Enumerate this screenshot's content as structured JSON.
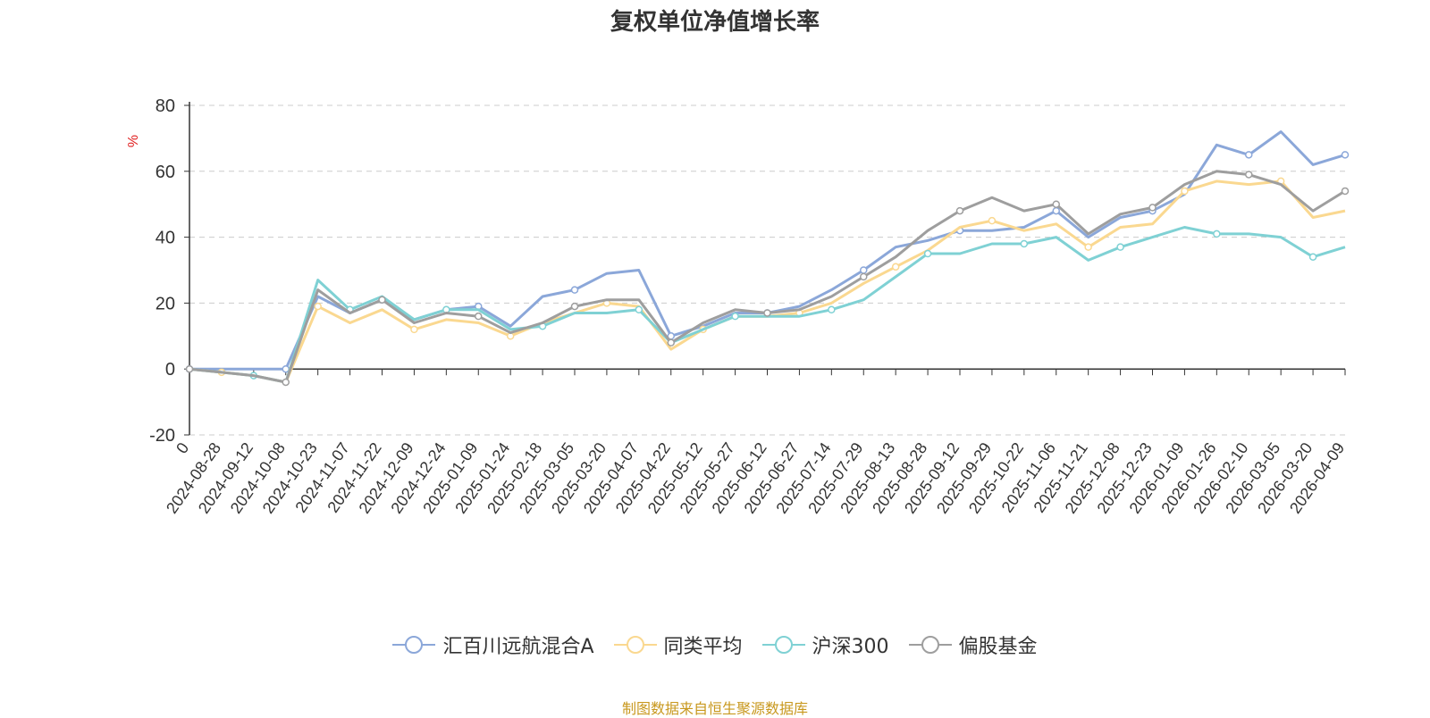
{
  "chart_data": {
    "type": "line",
    "title": "复权单位净值增长率",
    "ylabel": "%",
    "ylim": [
      -20,
      80
    ],
    "yticks": [
      -20,
      0,
      20,
      40,
      60,
      80
    ],
    "grid": true,
    "legend_position": "bottom",
    "x_tick_labels": [
      "0",
      "2024-08-28",
      "2024-09-12",
      "2024-10-08",
      "2024-10-23",
      "2024-11-07",
      "2024-11-22",
      "2024-12-09",
      "2024-12-24",
      "2025-01-09",
      "2025-01-24",
      "2025-02-18",
      "2025-03-05",
      "2025-03-20",
      "2025-04-07",
      "2025-04-22",
      "2025-05-12",
      "2025-05-27",
      "2025-06-12",
      "2025-06-27",
      "2025-07-14",
      "2025-07-29",
      "2025-08-13",
      "2025-08-28",
      "2025-09-12",
      "2025-09-29",
      "2025-10-22",
      "2025-11-06",
      "2025-11-21",
      "2025-12-08",
      "2025-12-23",
      "2026-01-09",
      "2026-01-26",
      "2026-02-10",
      "2026-03-05",
      "2026-03-20",
      "2026-04-09"
    ],
    "series": [
      {
        "name": "汇百川远航混合A",
        "color": "#8ba7d9",
        "values": [
          0,
          0,
          0,
          0,
          22,
          17,
          21,
          15,
          18,
          19,
          13,
          22,
          24,
          29,
          30,
          10,
          13,
          17,
          17,
          19,
          24,
          30,
          37,
          39,
          42,
          42,
          43,
          48,
          40,
          46,
          48,
          53,
          68,
          65,
          72,
          62,
          65
        ]
      },
      {
        "name": "同类平均",
        "color": "#fad890",
        "values": [
          0,
          -1,
          -2,
          -4,
          19,
          14,
          18,
          12,
          15,
          14,
          10,
          14,
          17,
          20,
          19,
          6,
          12,
          16,
          16,
          17,
          20,
          26,
          31,
          36,
          43,
          45,
          42,
          44,
          37,
          43,
          44,
          54,
          57,
          56,
          57,
          46,
          48
        ]
      },
      {
        "name": "沪深300",
        "color": "#7fd1d4",
        "values": [
          0,
          -1,
          -2,
          -4,
          27,
          18,
          22,
          15,
          18,
          18,
          12,
          13,
          17,
          17,
          18,
          8,
          12,
          16,
          16,
          16,
          18,
          21,
          28,
          35,
          35,
          38,
          38,
          40,
          33,
          37,
          40,
          43,
          41,
          41,
          40,
          34,
          37
        ]
      },
      {
        "name": "偏股基金",
        "color": "#9e9e9e",
        "values": [
          0,
          -1,
          -2,
          -4,
          24,
          17,
          21,
          14,
          17,
          16,
          11,
          14,
          19,
          21,
          21,
          8,
          14,
          18,
          17,
          18,
          22,
          28,
          34,
          42,
          48,
          52,
          48,
          50,
          41,
          47,
          49,
          56,
          60,
          59,
          56,
          48,
          54
        ]
      }
    ]
  },
  "footer": {
    "source": "制图数据来自恒生聚源数据库"
  }
}
